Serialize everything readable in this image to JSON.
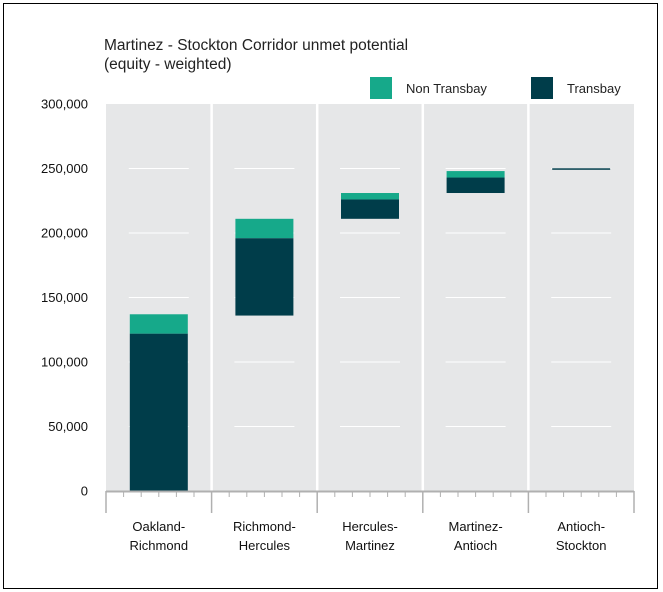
{
  "chart_data": {
    "type": "bar",
    "subtype": "waterfall-stacked",
    "title": "Martinez - Stockton Corridor unmet potential\n(equity - weighted)",
    "xlabel": "",
    "ylabel": "",
    "ylim": [
      0,
      300000
    ],
    "yticks": [
      0,
      50000,
      100000,
      150000,
      200000,
      250000,
      300000
    ],
    "ytick_labels": [
      "0",
      "50,000",
      "100,000",
      "150,000",
      "200,000",
      "250,000",
      "300,000"
    ],
    "categories": [
      "Oakland-\nRichmond",
      "Richmond-\nHercules",
      "Hercules-\nMartinez",
      "Martinez-\nAntioch",
      "Antioch-\nStockton"
    ],
    "base": [
      0,
      136000,
      211000,
      231000,
      249000
    ],
    "series": [
      {
        "name": "Transbay",
        "color": "#003d4a",
        "values": [
          122000,
          60000,
          15000,
          12000,
          500
        ]
      },
      {
        "name": "Non Transbay",
        "color": "#16a98a",
        "values": [
          15000,
          15000,
          5000,
          5000,
          0
        ]
      }
    ],
    "legend": {
      "placement": "top-right",
      "order": [
        "Non Transbay",
        "Transbay"
      ]
    },
    "grid": true
  }
}
